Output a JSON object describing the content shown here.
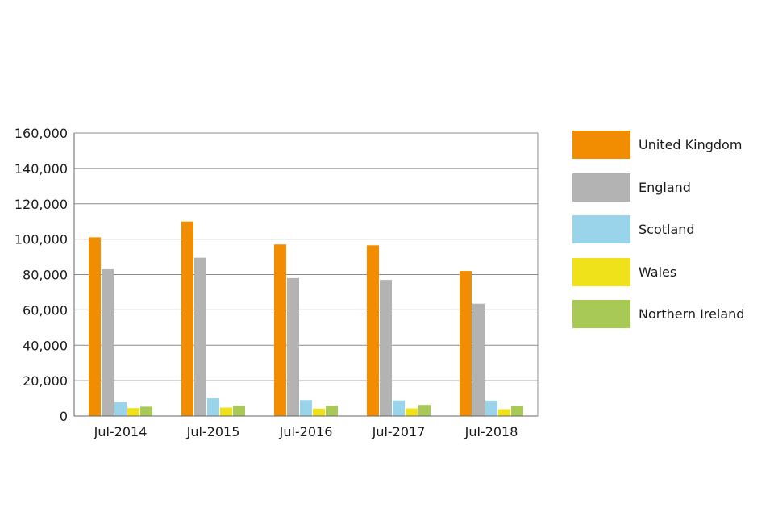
{
  "chart_data": {
    "type": "bar",
    "categories": [
      "Jul-2014",
      "Jul-2015",
      "Jul-2016",
      "Jul-2017",
      "Jul-2018"
    ],
    "series": [
      {
        "name": "United Kingdom",
        "color": "#f28c00",
        "values": [
          101000,
          110000,
          97000,
          96500,
          82000
        ]
      },
      {
        "name": "England",
        "color": "#b3b3b3",
        "values": [
          83000,
          89500,
          78000,
          77000,
          63500
        ]
      },
      {
        "name": "Scotland",
        "color": "#99d4ea",
        "values": [
          8000,
          10000,
          9000,
          8800,
          8700
        ]
      },
      {
        "name": "Wales",
        "color": "#f0e21a",
        "values": [
          4500,
          4800,
          4200,
          4300,
          3900
        ]
      },
      {
        "name": "Northern Ireland",
        "color": "#a9c957",
        "values": [
          5300,
          5800,
          5800,
          6300,
          5600
        ]
      }
    ],
    "y_ticks": [
      "0",
      "20,000",
      "40,000",
      "60,000",
      "80,000",
      "100,000",
      "120,000",
      "140,000",
      "160,000"
    ],
    "ylim": [
      0,
      160000
    ],
    "grid": true,
    "legend_position": "right",
    "title": "",
    "xlabel": "",
    "ylabel": ""
  }
}
